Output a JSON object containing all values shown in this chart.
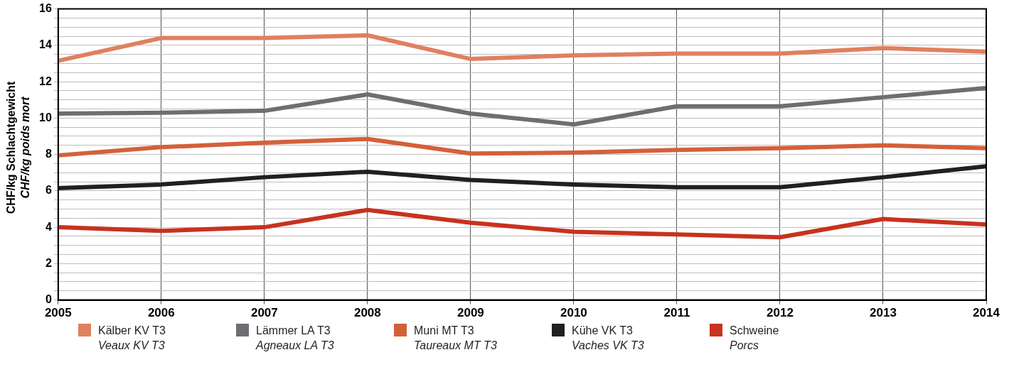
{
  "chart_data": {
    "type": "line",
    "ylabel": "CHF/kg Schlachtgewicht\nCHF/kg poids mort",
    "categories": [
      "2005",
      "2006",
      "2007",
      "2008",
      "2009",
      "2010",
      "2011",
      "2012",
      "2013",
      "2014"
    ],
    "series": [
      {
        "name": "Kälber KV T3\nVeaux KV T3",
        "color": "#e0805f",
        "values": [
          13.15,
          14.4,
          14.4,
          14.55,
          13.25,
          13.45,
          13.55,
          13.55,
          13.85,
          13.65
        ]
      },
      {
        "name": "Lämmer LA T3\nAgneaux LA T3",
        "color": "#6d6e71",
        "values": [
          10.25,
          10.3,
          10.4,
          11.3,
          10.25,
          9.65,
          10.65,
          10.65,
          11.15,
          11.65
        ]
      },
      {
        "name": "Muni MT T3\nTaureaux MT T3",
        "color": "#d4603a",
        "values": [
          7.95,
          8.4,
          8.65,
          8.85,
          8.05,
          8.1,
          8.25,
          8.35,
          8.5,
          8.35
        ]
      },
      {
        "name": "Kühe VK T3\nVaches VK T3",
        "color": "#231f20",
        "values": [
          6.15,
          6.35,
          6.75,
          7.05,
          6.6,
          6.35,
          6.2,
          6.2,
          6.75,
          7.35
        ]
      },
      {
        "name": "Schweine\nPorcs",
        "color": "#c8321e",
        "values": [
          4,
          3.8,
          4,
          4.95,
          4.25,
          3.75,
          3.6,
          3.45,
          4.45,
          4.15
        ]
      }
    ],
    "ylim": [
      0,
      16
    ],
    "yticks": [
      0,
      {
        "value": 0.5,
        "label": null
      },
      {
        "value": 1,
        "label": null
      },
      {
        "value": 1.5,
        "label": null
      },
      2,
      {
        "value": 2.5,
        "label": null
      },
      {
        "value": 3,
        "label": null
      },
      {
        "value": 3.5,
        "label": null
      },
      4,
      {
        "value": 4.5,
        "label": null
      },
      {
        "value": 5,
        "label": null
      },
      {
        "value": 5.5,
        "label": null
      },
      6,
      {
        "value": 6.5,
        "label": null
      },
      {
        "value": 7,
        "label": null
      },
      {
        "value": 7.5,
        "label": null
      },
      8,
      {
        "value": 8.5,
        "label": null
      },
      {
        "value": 9,
        "label": null
      },
      {
        "value": 9.5,
        "label": null
      },
      10,
      {
        "value": 10.5,
        "label": null
      },
      {
        "value": 11,
        "label": null
      },
      {
        "value": 11.5,
        "label": null
      },
      12,
      {
        "value": 12.5,
        "label": null
      },
      {
        "value": 13,
        "label": null
      },
      {
        "value": 13.5,
        "label": null
      },
      14,
      {
        "value": 14.5,
        "label": null
      },
      {
        "value": 15,
        "label": null
      },
      {
        "value": 15.5,
        "label": null
      },
      16
    ],
    "grid": true,
    "legend": "bottom",
    "marker": "none",
    "line_style": "solid"
  }
}
